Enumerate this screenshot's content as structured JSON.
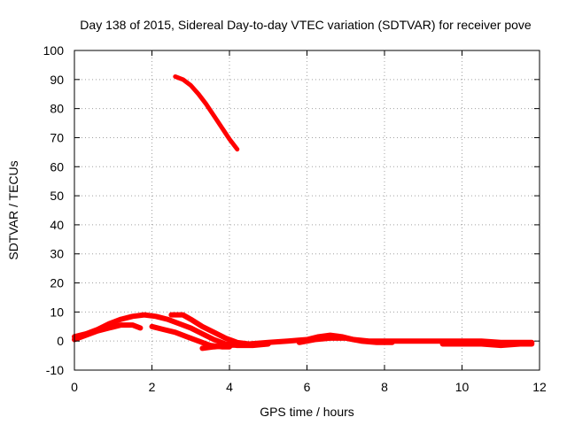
{
  "chart_data": {
    "type": "line",
    "title": "Day 138 of 2015, Sidereal Day-to-day VTEC variation (SDTVAR) for receiver pove",
    "xlabel": "GPS time / hours",
    "ylabel": "SDTVAR / TECUs",
    "xlim": [
      0,
      12
    ],
    "ylim": [
      -10,
      100
    ],
    "xticks": [
      0,
      2,
      4,
      6,
      8,
      10,
      12
    ],
    "yticks": [
      -10,
      0,
      10,
      20,
      30,
      40,
      50,
      60,
      70,
      80,
      90,
      100
    ],
    "grid": true,
    "color": "#ff0000",
    "series": [
      {
        "x": [
          2.6,
          2.8,
          3.0,
          3.2,
          3.4,
          3.6,
          3.8,
          4.0,
          4.2
        ],
        "y": [
          91,
          90,
          88,
          85,
          81.5,
          77.5,
          73.5,
          69.5,
          66
        ]
      },
      {
        "x": [
          0.0,
          0.3,
          0.6,
          0.9,
          1.2,
          1.5,
          1.8,
          2.1,
          2.4,
          2.7,
          3.0,
          3.3,
          3.6,
          3.9,
          4.2,
          4.6,
          5.0
        ],
        "y": [
          1.5,
          2.5,
          4,
          6,
          7.5,
          8.5,
          9,
          8.5,
          7.5,
          6,
          4.5,
          2.5,
          0.5,
          -1,
          -1.5,
          -1.5,
          -1
        ]
      },
      {
        "x": [
          0.0,
          0.3,
          0.6,
          0.9,
          1.2,
          1.5,
          1.7
        ],
        "y": [
          0.5,
          2,
          3.5,
          4.5,
          5.5,
          5.5,
          4.5
        ]
      },
      {
        "x": [
          2.0,
          2.3,
          2.6,
          2.9,
          3.2,
          3.5,
          3.8,
          4.0
        ],
        "y": [
          5,
          4,
          3,
          1.5,
          0,
          -1.5,
          -2,
          -2
        ]
      },
      {
        "x": [
          2.5,
          2.8,
          3.0,
          3.3,
          3.6,
          3.9,
          4.2,
          4.5
        ],
        "y": [
          9,
          9,
          7.5,
          5,
          3,
          1,
          -0.5,
          -1
        ]
      },
      {
        "x": [
          3.3,
          3.6,
          4.0,
          4.4
        ],
        "y": [
          -2.5,
          -2,
          -1.5,
          -1
        ]
      },
      {
        "x": [
          4.5,
          5.0,
          5.5,
          6.0,
          6.3,
          6.6,
          6.9,
          7.2,
          7.6,
          8.0,
          8.5,
          9.0,
          9.5,
          10.0,
          10.5,
          11.0,
          11.5,
          11.8
        ],
        "y": [
          -1,
          -0.5,
          0,
          0.5,
          1.5,
          2,
          1.5,
          0.5,
          0,
          0,
          0,
          0,
          0,
          0,
          0,
          -0.5,
          -0.5,
          -0.5
        ]
      },
      {
        "x": [
          5.8,
          6.2,
          6.6,
          7.0,
          7.4,
          7.8,
          8.2
        ],
        "y": [
          -0.5,
          0.5,
          1,
          1,
          0,
          -0.5,
          -0.5
        ]
      },
      {
        "x": [
          9.5,
          10.0,
          10.5,
          11.0,
          11.5,
          11.8
        ],
        "y": [
          -1,
          -1,
          -1,
          -1.5,
          -1,
          -1
        ]
      }
    ]
  }
}
